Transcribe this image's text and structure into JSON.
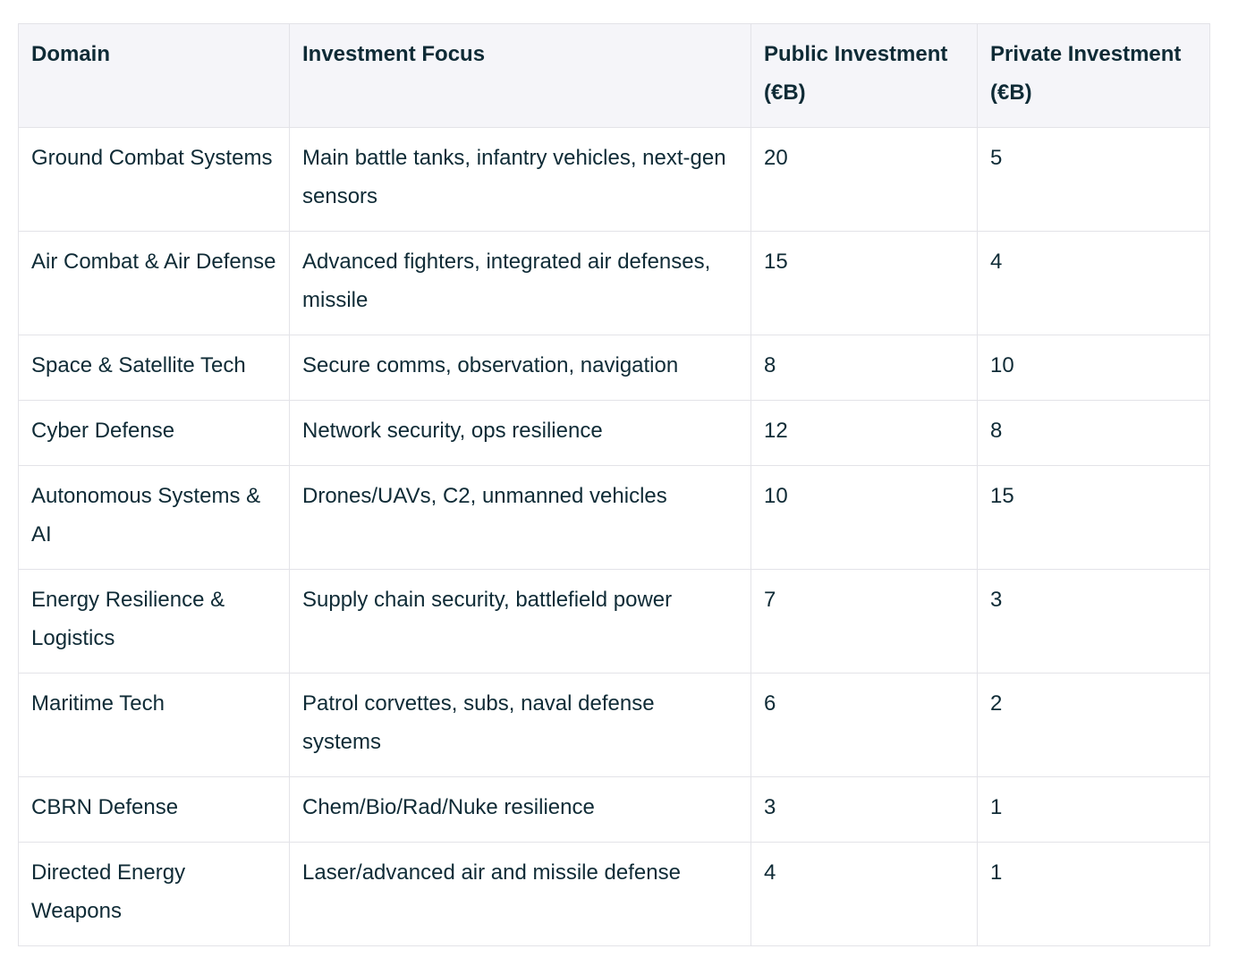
{
  "table": {
    "headers": [
      "Domain",
      "Investment Focus",
      "Public Investment (€B)",
      "Private Investment (€B)"
    ],
    "rows": [
      {
        "domain": "Ground Combat Systems",
        "focus": "Main battle tanks, infantry vehicles, next-gen sensors",
        "public": "20",
        "private": "5"
      },
      {
        "domain": "Air Combat & Air Defense",
        "focus": "Advanced fighters, integrated air defenses, missile",
        "public": "15",
        "private": "4"
      },
      {
        "domain": "Space & Satellite Tech",
        "focus": "Secure comms, observation, navigation",
        "public": "8",
        "private": "10"
      },
      {
        "domain": "Cyber Defense",
        "focus": "Network security, ops resilience",
        "public": "12",
        "private": "8"
      },
      {
        "domain": "Autonomous Systems & AI",
        "focus": "Drones/UAVs, C2, unmanned vehicles",
        "public": "10",
        "private": "15"
      },
      {
        "domain": "Energy Resilience & Logistics",
        "focus": "Supply chain security, battlefield power",
        "public": "7",
        "private": "3"
      },
      {
        "domain": "Maritime Tech",
        "focus": "Patrol corvettes, subs, naval defense systems",
        "public": "6",
        "private": "2"
      },
      {
        "domain": "CBRN Defense",
        "focus": "Chem/Bio/Rad/Nuke resilience",
        "public": "3",
        "private": "1"
      },
      {
        "domain": "Directed Energy Weapons",
        "focus": "Laser/advanced air and missile defense",
        "public": "4",
        "private": "1"
      }
    ]
  }
}
